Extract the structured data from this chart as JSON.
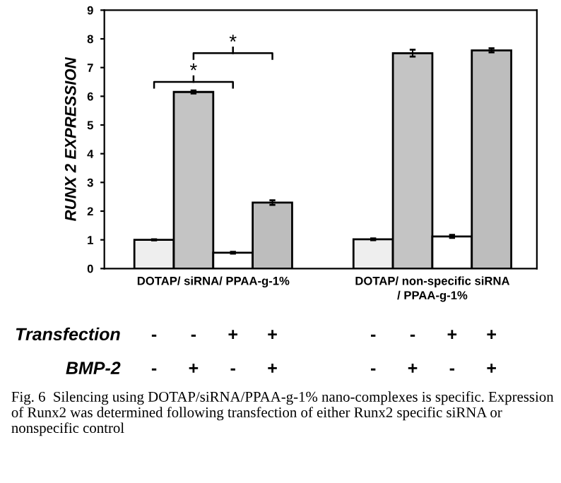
{
  "chart_data": {
    "type": "bar",
    "categories": [
      "DOTAP/ siRNA/ PPAA-g-1%",
      "DOTAP/ non-specific siRNA\n/ PPAA-g-1%"
    ],
    "series": [
      {
        "color": "#eeeeee",
        "values": [
          1.0,
          1.02
        ],
        "errors": [
          0.02,
          0.03
        ]
      },
      {
        "color": "#c4c4c4",
        "values": [
          6.15,
          7.5
        ],
        "errors": [
          0.05,
          0.12
        ]
      },
      {
        "color": "#ffffff",
        "values": [
          0.55,
          1.12
        ],
        "errors": [
          0.03,
          0.05
        ]
      },
      {
        "color": "#bdbdbd",
        "values": [
          2.3,
          7.6
        ],
        "errors": [
          0.08,
          0.07
        ]
      }
    ],
    "ylabel": "RUNX 2 EXPRESSION",
    "ylim": [
      0,
      9
    ],
    "yticks": [
      0,
      1,
      2,
      3,
      4,
      5,
      6,
      7,
      8,
      9
    ],
    "grid": false,
    "annotations": [
      "*",
      "*",
      "Transfection",
      "BMP-2",
      "-",
      "-",
      "+",
      "+",
      "-",
      "-",
      "+",
      "+",
      "-",
      "+",
      "-",
      "+",
      "-",
      "+",
      "-",
      "+",
      "Fig. 6  Silencing using DOTAP/siRNA/PPAA-g-1% nano-complexes is specific. Expression of Runx2 was determined following transfection of either Runx2 specific siRNA or nonspecific control"
    ]
  }
}
